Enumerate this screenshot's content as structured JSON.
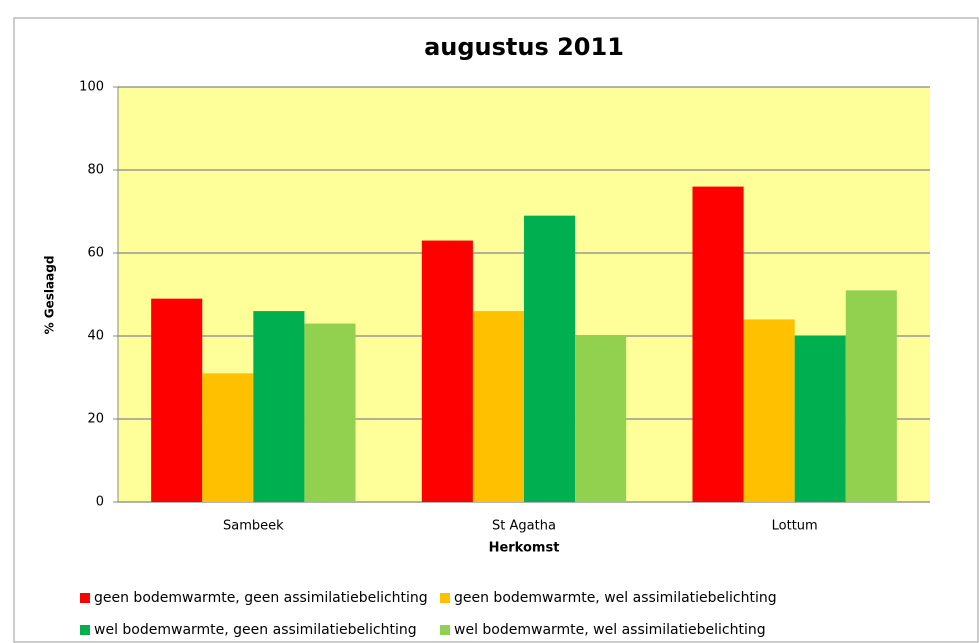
{
  "chart_data": {
    "type": "bar",
    "title": "augustus 2011",
    "x_label": "Herkomst",
    "y_label": "% Geslaagd",
    "categories": [
      "Sambeek",
      "St Agatha",
      "Lottum"
    ],
    "series": [
      {
        "name": "geen bodemwarmte, geen assimilatiebelichting",
        "color": "#ff0000",
        "values": [
          49,
          63,
          76
        ]
      },
      {
        "name": "geen bodemwarmte, wel assimilatiebelichting",
        "color": "#ffc000",
        "values": [
          31,
          46,
          44
        ]
      },
      {
        "name": "wel bodemwarmte, geen assimilatiebelichting",
        "color": "#00b050",
        "values": [
          46,
          69,
          40
        ]
      },
      {
        "name": "wel bodemwarmte, wel assimilatiebelichting",
        "color": "#92d050",
        "values": [
          43,
          40,
          51
        ]
      }
    ],
    "ylim": [
      0,
      100
    ],
    "yticks": [
      0,
      20,
      40,
      60,
      80,
      100
    ],
    "grid": true,
    "plot_background": "#ffff99",
    "legend": "bottom"
  }
}
